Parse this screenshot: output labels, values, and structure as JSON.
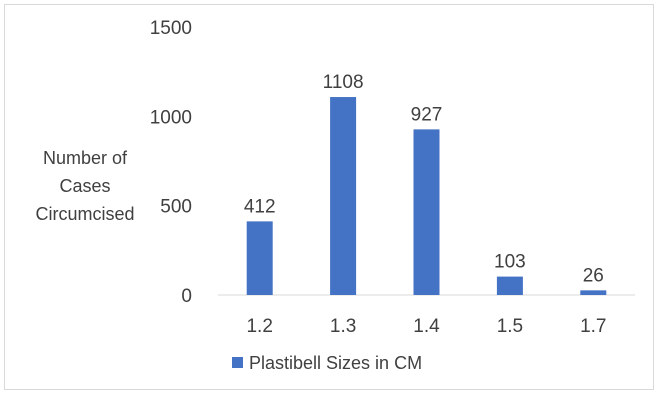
{
  "chart_data": {
    "type": "bar",
    "categories": [
      "1.2",
      "1.3",
      "1.4",
      "1.5",
      "1.7"
    ],
    "series": [
      {
        "name": "Plastibell Sizes in CM",
        "values": [
          412,
          1108,
          927,
          103,
          26
        ],
        "color": "#4472c4"
      }
    ],
    "ylabel": [
      "Number of",
      "Cases",
      "Circumcised"
    ],
    "xlabel": "",
    "ylim": [
      0,
      1500
    ],
    "yticks": [
      0,
      500,
      1000,
      1500
    ],
    "data_labels": true,
    "grid": false,
    "legend": "bottom"
  }
}
